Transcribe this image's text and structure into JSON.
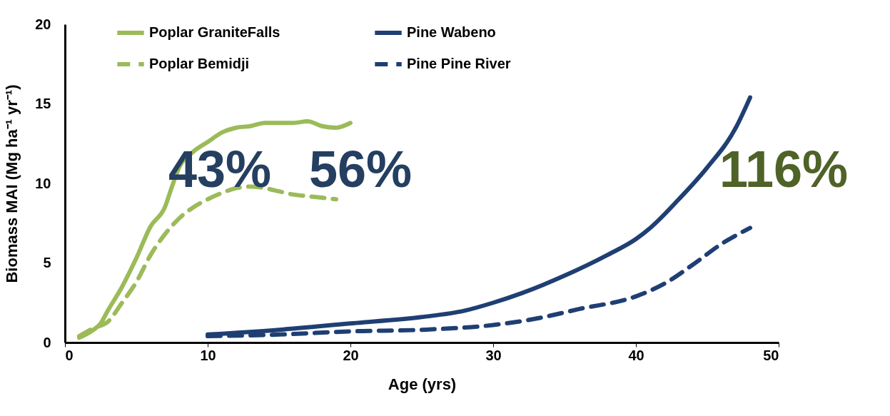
{
  "chart_data": {
    "type": "line",
    "xlabel": "Age (yrs)",
    "ylabel": "Biomass MAI (Mg ha⁻¹ yr⁻¹)",
    "xlim": [
      0,
      50
    ],
    "xticks": [
      0,
      10,
      20,
      30,
      40,
      50
    ],
    "ylim": [
      0,
      20
    ],
    "yticks": [
      0,
      5,
      10,
      15,
      20
    ],
    "grid": false,
    "legend": "top",
    "marker": "none",
    "annotations": [
      "43%",
      "56%",
      "116%"
    ],
    "series": [
      {
        "name": "Poplar GraniteFalls",
        "color": "#9bbb59",
        "line_style": "solid",
        "x": [
          1,
          2,
          2.5,
          3,
          4,
          5,
          6,
          7,
          7.5,
          8,
          9,
          10,
          11,
          12,
          13,
          14,
          15,
          16,
          17,
          18,
          19,
          20
        ],
        "values": [
          0.3,
          0.8,
          1.2,
          2,
          3.5,
          5.3,
          7.3,
          8.5,
          9.8,
          11,
          12,
          12.6,
          13.2,
          13.5,
          13.6,
          13.8,
          13.8,
          13.8,
          13.9,
          13.6,
          13.5,
          13.8
        ]
      },
      {
        "name": "Pine Wabeno",
        "color": "#1f3f73",
        "line_style": "solid",
        "x": [
          10,
          15,
          20,
          25,
          28,
          30,
          32,
          35,
          38,
          40,
          41,
          43,
          45,
          47,
          48
        ],
        "values": [
          0.5,
          0.8,
          1.2,
          1.6,
          2.0,
          2.5,
          3.1,
          4.2,
          5.5,
          6.5,
          7.2,
          9,
          11,
          13.5,
          15.4
        ]
      },
      {
        "name": "Poplar Bemidji",
        "color": "#9bbb59",
        "line_style": "dashed",
        "x": [
          1,
          2,
          3,
          4,
          5,
          6,
          7,
          8,
          9,
          10,
          11,
          12,
          13,
          14,
          15,
          16,
          17,
          18,
          19
        ],
        "values": [
          0.4,
          0.9,
          1.3,
          2.5,
          3.8,
          5.5,
          6.8,
          7.8,
          8.5,
          9.0,
          9.4,
          9.7,
          9.8,
          9.7,
          9.5,
          9.3,
          9.2,
          9.1,
          9.0
        ]
      },
      {
        "name": "Pine Pine River",
        "color": "#1f3f73",
        "line_style": "dashed",
        "x": [
          10,
          15,
          20,
          25,
          30,
          33,
          36,
          40,
          42,
          44,
          46,
          48
        ],
        "values": [
          0.4,
          0.5,
          0.7,
          0.8,
          1.1,
          1.5,
          2.1,
          2.9,
          3.7,
          4.9,
          6.2,
          7.2
        ]
      }
    ]
  }
}
